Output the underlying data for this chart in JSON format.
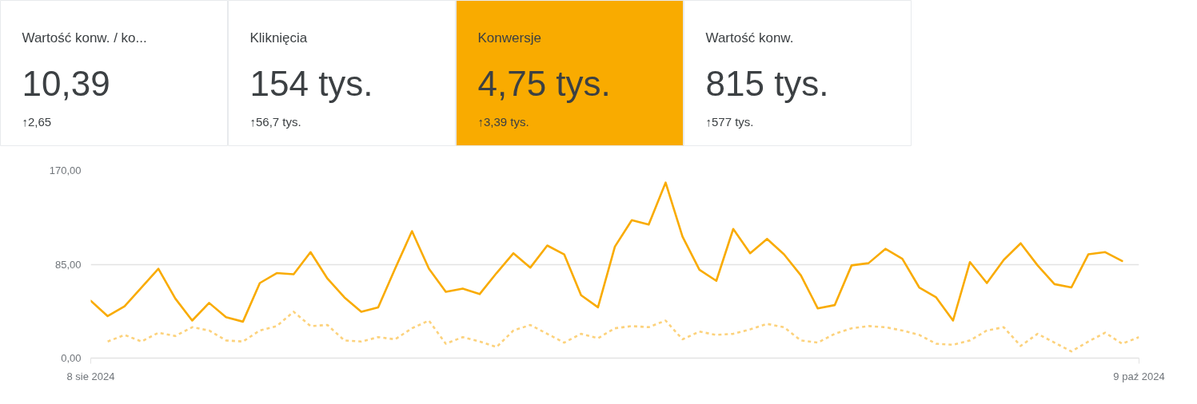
{
  "chart_data": [
    {
      "type": "other",
      "title": "Wartość konw. / ko...",
      "annotations": [
        "10,39",
        "↑2,65"
      ]
    },
    {
      "type": "other",
      "title": "Kliknięcia",
      "annotations": [
        "154 tys.",
        "↑56,7 tys."
      ]
    },
    {
      "type": "other",
      "title": "Konwersje",
      "annotations": [
        "4,75 tys.",
        "↑3,39 tys."
      ],
      "color": "#f9ab00"
    },
    {
      "type": "other",
      "title": "Wartość konw.",
      "annotations": [
        "815 tys.",
        "↑577 tys."
      ]
    },
    {
      "type": "line",
      "x": [
        "2024-08-08",
        "2024-08-09",
        "2024-08-10",
        "2024-08-11",
        "2024-08-12",
        "2024-08-13",
        "2024-08-14",
        "2024-08-15",
        "2024-08-16",
        "2024-08-17",
        "2024-08-18",
        "2024-08-19",
        "2024-08-20",
        "2024-08-21",
        "2024-08-22",
        "2024-08-23",
        "2024-08-24",
        "2024-08-25",
        "2024-08-26",
        "2024-08-27",
        "2024-08-28",
        "2024-08-29",
        "2024-08-30",
        "2024-08-31",
        "2024-09-01",
        "2024-09-02",
        "2024-09-03",
        "2024-09-04",
        "2024-09-05",
        "2024-09-06",
        "2024-09-07",
        "2024-09-08",
        "2024-09-09",
        "2024-09-10",
        "2024-09-11",
        "2024-09-12",
        "2024-09-13",
        "2024-09-14",
        "2024-09-15",
        "2024-09-16",
        "2024-09-17",
        "2024-09-18",
        "2024-09-19",
        "2024-09-20",
        "2024-09-21",
        "2024-09-22",
        "2024-09-23",
        "2024-09-24",
        "2024-09-25",
        "2024-09-26",
        "2024-09-27",
        "2024-09-28",
        "2024-09-29",
        "2024-09-30",
        "2024-10-01",
        "2024-10-02",
        "2024-10-03",
        "2024-10-04",
        "2024-10-05",
        "2024-10-06",
        "2024-10-07",
        "2024-10-08",
        "2024-10-09"
      ],
      "series": [
        {
          "color": "#f9ab00",
          "line_style": "solid",
          "values": [
            52,
            38,
            47,
            64,
            81,
            54,
            34,
            50,
            37,
            33,
            68,
            77,
            76,
            96,
            72,
            55,
            42,
            46,
            81,
            115,
            81,
            60,
            63,
            58,
            77,
            95,
            82,
            102,
            94,
            57,
            46,
            101,
            125,
            121,
            159,
            110,
            80,
            70,
            117,
            95,
            108,
            94,
            75,
            45,
            48,
            84,
            86,
            99,
            90,
            64,
            55,
            34,
            87,
            68,
            89,
            104,
            84,
            67,
            64,
            94,
            96,
            88,
            null
          ]
        },
        {
          "color": "#fcd27c",
          "line_style": "dashed",
          "values": [
            null,
            15,
            21,
            15,
            23,
            20,
            28,
            25,
            16,
            15,
            25,
            29,
            42,
            29,
            30,
            16,
            15,
            19,
            17,
            27,
            34,
            13,
            19,
            15,
            10,
            25,
            30,
            22,
            14,
            22,
            18,
            27,
            29,
            28,
            34,
            17,
            24,
            21,
            22,
            26,
            31,
            28,
            16,
            14,
            22,
            27,
            29,
            28,
            25,
            21,
            13,
            12,
            16,
            25,
            28,
            11,
            22,
            14,
            6,
            15,
            23,
            13,
            19
          ]
        }
      ],
      "xlim": [
        "2024-08-08",
        "2024-10-09"
      ],
      "xticks": [
        {
          "value": "2024-08-08",
          "label": "8 sie 2024"
        },
        {
          "value": "2024-10-09",
          "label": "9 paź 2024"
        }
      ],
      "ylim": [
        0,
        170
      ],
      "yticks": [
        {
          "value": 0,
          "label": "0,00"
        },
        {
          "value": 85,
          "label": "85,00"
        },
        {
          "value": 170,
          "label": "170,00"
        }
      ],
      "grid": "y"
    }
  ]
}
